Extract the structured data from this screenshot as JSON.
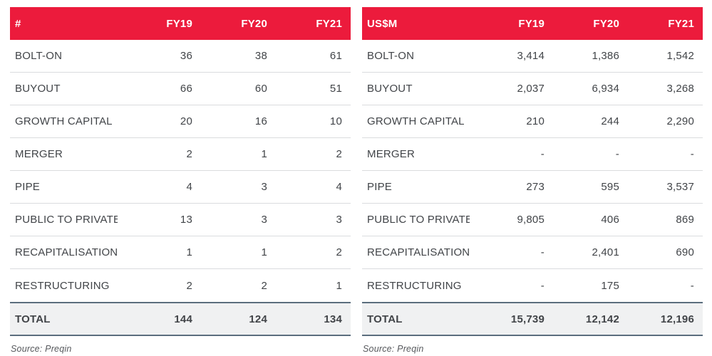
{
  "colors": {
    "header_bg": "#EC1B3C",
    "header_text": "#FFFFFF",
    "body_text": "#414448",
    "row_divider": "#DADCDE",
    "total_bg": "#F0F1F2",
    "total_border": "#5B6E7E",
    "source_text": "#56585C"
  },
  "chart_data": [
    {
      "type": "table",
      "corner_header": "#",
      "columns": [
        "FY19",
        "FY20",
        "FY21"
      ],
      "rows": [
        {
          "label": "BOLT-ON",
          "values": [
            "36",
            "38",
            "61"
          ]
        },
        {
          "label": "BUYOUT",
          "values": [
            "66",
            "60",
            "51"
          ]
        },
        {
          "label": "GROWTH CAPITAL",
          "values": [
            "20",
            "16",
            "10"
          ]
        },
        {
          "label": "MERGER",
          "values": [
            "2",
            "1",
            "2"
          ]
        },
        {
          "label": "PIPE",
          "values": [
            "4",
            "3",
            "4"
          ]
        },
        {
          "label": "PUBLIC TO PRIVATE",
          "values": [
            "13",
            "3",
            "3"
          ]
        },
        {
          "label": "RECAPITALISATION",
          "values": [
            "1",
            "1",
            "2"
          ]
        },
        {
          "label": "RESTRUCTURING",
          "values": [
            "2",
            "2",
            "1"
          ]
        }
      ],
      "total": {
        "label": "TOTAL",
        "values": [
          "144",
          "124",
          "134"
        ]
      },
      "source": "Source: Preqin"
    },
    {
      "type": "table",
      "corner_header": "US$M",
      "columns": [
        "FY19",
        "FY20",
        "FY21"
      ],
      "rows": [
        {
          "label": "BOLT-ON",
          "values": [
            "3,414",
            "1,386",
            "1,542"
          ]
        },
        {
          "label": "BUYOUT",
          "values": [
            "2,037",
            "6,934",
            "3,268"
          ]
        },
        {
          "label": "GROWTH CAPITAL",
          "values": [
            "210",
            "244",
            "2,290"
          ]
        },
        {
          "label": "MERGER",
          "values": [
            "-",
            "-",
            "-"
          ]
        },
        {
          "label": "PIPE",
          "values": [
            "273",
            "595",
            "3,537"
          ]
        },
        {
          "label": "PUBLIC TO PRIVATE",
          "values": [
            "9,805",
            "406",
            "869"
          ]
        },
        {
          "label": "RECAPITALISATION",
          "values": [
            "-",
            "2,401",
            "690"
          ]
        },
        {
          "label": "RESTRUCTURING",
          "values": [
            "-",
            "175",
            "-"
          ]
        }
      ],
      "total": {
        "label": "TOTAL",
        "values": [
          "15,739",
          "12,142",
          "12,196"
        ]
      },
      "source": "Source: Preqin"
    }
  ]
}
